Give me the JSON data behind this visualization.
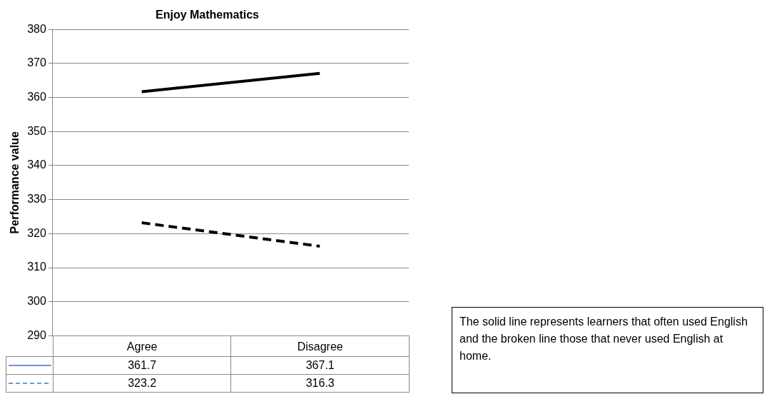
{
  "chart_data": {
    "type": "line",
    "title": "Enjoy Mathematics",
    "ylabel": "Performance value",
    "categories": [
      "Agree",
      "Disagree"
    ],
    "series": [
      {
        "color": "#000000",
        "values": [
          361.7,
          367.1
        ],
        "line_style": "solid"
      },
      {
        "color": "#000000",
        "values": [
          323.2,
          316.3
        ],
        "line_style": "dashed"
      }
    ],
    "ylim": [
      290,
      380
    ],
    "yticks": [
      290,
      300,
      310,
      320,
      330,
      340,
      350,
      360,
      370,
      380
    ],
    "grid": "y",
    "legend": false,
    "marker": "none",
    "data_labels": true,
    "annotations": [
      "The solid line represents learners that often used English and the broken line those that never used English at home."
    ]
  }
}
